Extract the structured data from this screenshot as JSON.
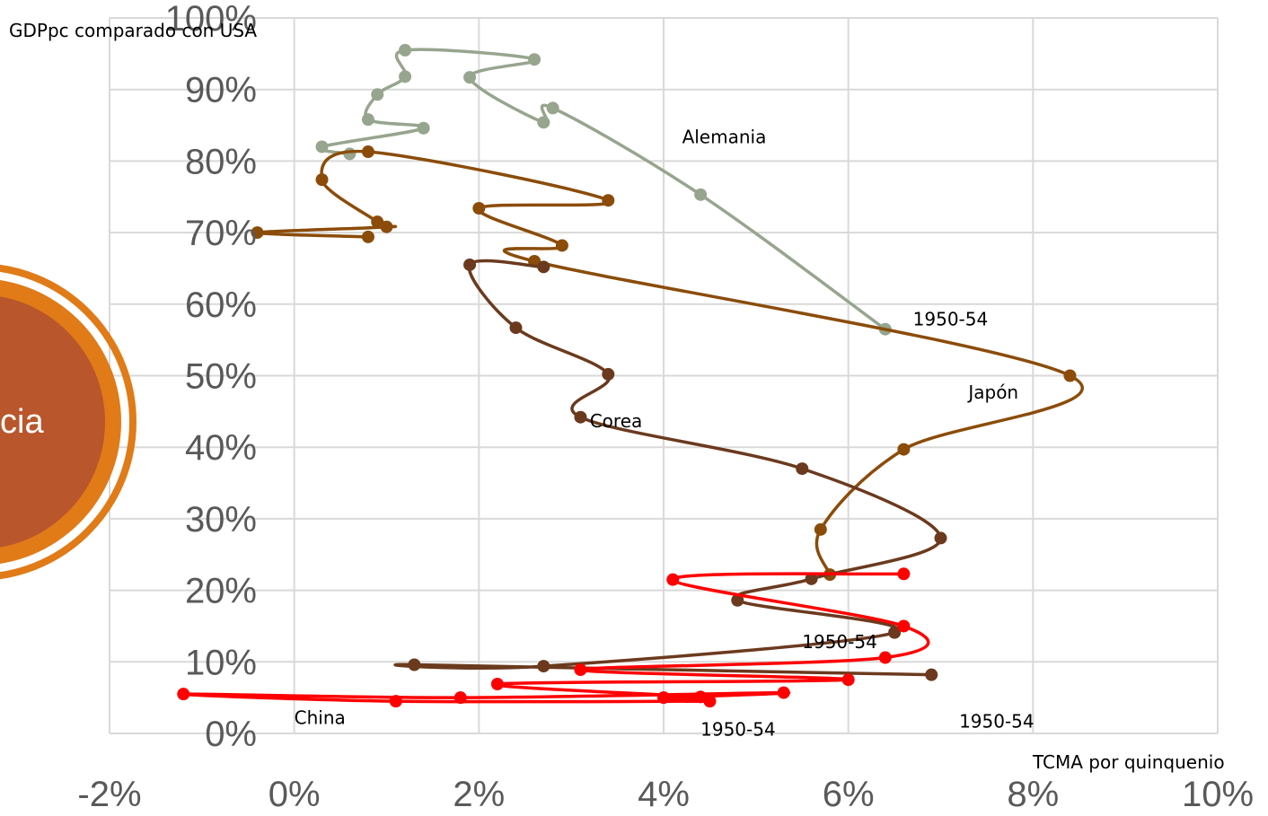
{
  "colors": {
    "alemania": "#97a58f",
    "japon": "#8b4c0a",
    "corea": "#6b3a1e",
    "china": "#ff0000",
    "grid": "#d9d9d9",
    "deco_outer": "#e07b18",
    "deco_inner": "#b9562c"
  },
  "decoration": {
    "partial_text": "cia"
  },
  "chart_data": {
    "type": "scatter",
    "xlabel": "TCMA por quinquenio",
    "ylabel": "GDPpc comparado con USA",
    "xlim": [
      -2,
      10
    ],
    "ylim": [
      0,
      100
    ],
    "x_ticks": [
      "-2%",
      "0%",
      "2%",
      "4%",
      "6%",
      "8%",
      "10%"
    ],
    "y_ticks": [
      "0%",
      "10%",
      "20%",
      "30%",
      "40%",
      "50%",
      "60%",
      "70%",
      "80%",
      "90%",
      "100%"
    ],
    "grid": true,
    "series": [
      {
        "name": "Alemania",
        "color_key": "alemania",
        "points": [
          [
            6.4,
            56.5
          ],
          [
            4.4,
            75.3
          ],
          [
            2.8,
            87.4
          ],
          [
            2.7,
            85.4
          ],
          [
            1.9,
            91.7
          ],
          [
            2.6,
            94.2
          ],
          [
            1.2,
            95.5
          ],
          [
            1.2,
            91.8
          ],
          [
            0.9,
            89.3
          ],
          [
            0.8,
            85.8
          ],
          [
            1.4,
            84.6
          ],
          [
            0.3,
            82.0
          ],
          [
            0.6,
            81.0
          ]
        ]
      },
      {
        "name": "Japón",
        "color_key": "japon",
        "points": [
          [
            5.8,
            22.2
          ],
          [
            5.7,
            28.5
          ],
          [
            6.6,
            39.7
          ],
          [
            8.4,
            50.0
          ],
          [
            2.6,
            66.0
          ],
          [
            2.9,
            68.2
          ],
          [
            2.0,
            73.4
          ],
          [
            3.4,
            74.5
          ],
          [
            0.8,
            81.3
          ],
          [
            0.3,
            77.4
          ],
          [
            0.9,
            71.5
          ],
          [
            1.0,
            70.8
          ],
          [
            -0.4,
            70.0
          ],
          [
            0.8,
            69.4
          ]
        ]
      },
      {
        "name": "Corea",
        "color_key": "corea",
        "points": [
          [
            6.9,
            8.2
          ],
          [
            1.3,
            9.6
          ],
          [
            2.7,
            9.4
          ],
          [
            6.5,
            14.1
          ],
          [
            4.8,
            18.6
          ],
          [
            5.6,
            21.6
          ],
          [
            7.0,
            27.3
          ],
          [
            5.5,
            37.0
          ],
          [
            3.1,
            44.2
          ],
          [
            3.4,
            50.2
          ],
          [
            2.4,
            56.7
          ],
          [
            1.9,
            65.5
          ],
          [
            2.7,
            65.2
          ]
        ]
      },
      {
        "name": "China",
        "color_key": "china",
        "points": [
          [
            4.5,
            4.5
          ],
          [
            1.1,
            4.5
          ],
          [
            -1.2,
            5.5
          ],
          [
            1.8,
            5.0
          ],
          [
            5.3,
            5.7
          ],
          [
            4.0,
            5.0
          ],
          [
            4.4,
            5.1
          ],
          [
            2.2,
            6.9
          ],
          [
            6.0,
            7.5
          ],
          [
            3.1,
            8.9
          ],
          [
            6.4,
            10.6
          ],
          [
            6.6,
            15.0
          ],
          [
            4.1,
            21.5
          ],
          [
            6.6,
            22.3
          ]
        ]
      }
    ],
    "annotations": [
      {
        "text": "Alemania",
        "x": 4.2,
        "y": 82.5
      },
      {
        "text": "1950-54",
        "x": 6.7,
        "y": 57.0
      },
      {
        "text": "Japón",
        "x": 7.3,
        "y": 46.8
      },
      {
        "text": "Corea",
        "x": 3.2,
        "y": 42.8
      },
      {
        "text": "1950-54",
        "x": 5.5,
        "y": 11.9
      },
      {
        "text": "China",
        "x": 0.0,
        "y": 1.3
      },
      {
        "text": "1950-54",
        "x": 4.4,
        "y": -0.3
      },
      {
        "text": "1950-54",
        "x": 7.2,
        "y": 0.8
      }
    ]
  }
}
